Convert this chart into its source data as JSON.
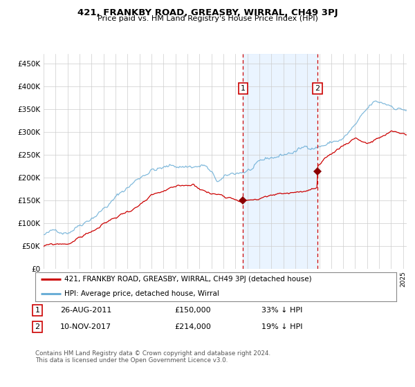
{
  "title": "421, FRANKBY ROAD, GREASBY, WIRRAL, CH49 3PJ",
  "subtitle": "Price paid vs. HM Land Registry's House Price Index (HPI)",
  "legend_line1": "421, FRANKBY ROAD, GREASBY, WIRRAL, CH49 3PJ (detached house)",
  "legend_line2": "HPI: Average price, detached house, Wirral",
  "transaction1_date": "26-AUG-2011",
  "transaction1_price": "£150,000",
  "transaction1_pct": "33% ↓ HPI",
  "transaction2_date": "10-NOV-2017",
  "transaction2_price": "£214,000",
  "transaction2_pct": "19% ↓ HPI",
  "footer": "Contains HM Land Registry data © Crown copyright and database right 2024.\nThis data is licensed under the Open Government Licence v3.0.",
  "hpi_color": "#6baed6",
  "price_color": "#cc0000",
  "marker_color": "#8b0000",
  "vline_color": "#cc0000",
  "shade_color": "#ddeeff",
  "background_color": "#ffffff",
  "grid_color": "#cccccc",
  "ylim": [
    0,
    470000
  ],
  "transaction1_x": 2011.65,
  "transaction2_x": 2017.85,
  "transaction1_y": 150000,
  "transaction2_y": 214000,
  "xmin": 1995,
  "xmax": 2025.3
}
